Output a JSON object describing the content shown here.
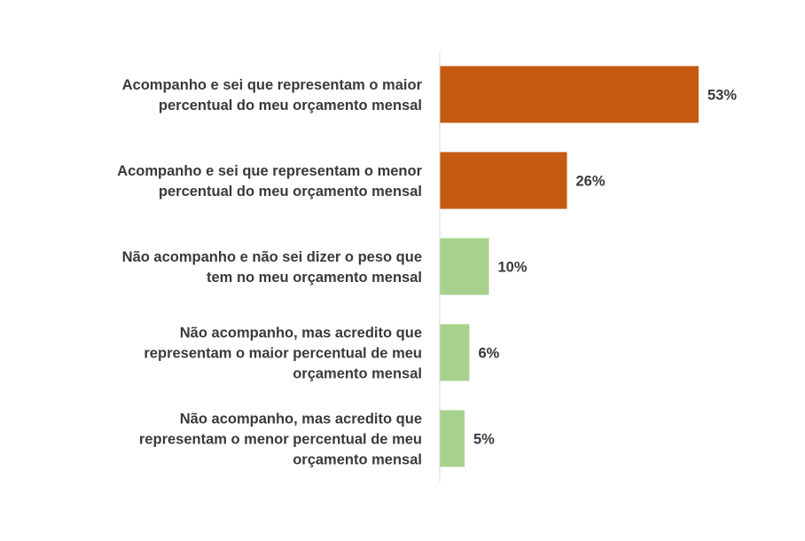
{
  "chart_data": {
    "type": "bar",
    "orientation": "horizontal",
    "categories": [
      [
        "Acompanho e sei que representam o maior",
        "percentual do meu orçamento mensal"
      ],
      [
        "Acompanho e sei que representam o menor",
        "percentual do meu orçamento mensal"
      ],
      [
        "Não acompanho e não sei dizer o peso que",
        "tem no meu orçamento mensal"
      ],
      [
        "Não acompanho, mas acredito que",
        "representam o maior percentual de meu",
        "orçamento mensal"
      ],
      [
        "Não acompanho, mas acredito que",
        "representam o menor percentual de meu",
        "orçamento mensal"
      ]
    ],
    "values": [
      53,
      26,
      10,
      6,
      5
    ],
    "value_labels": [
      "53%",
      "26%",
      "10%",
      "6%",
      "5%"
    ],
    "colors": [
      "#c55a11",
      "#c55a11",
      "#a9d18e",
      "#a9d18e",
      "#a9d18e"
    ],
    "xlim": [
      0,
      60
    ],
    "grid": false,
    "title": "",
    "xlabel": "",
    "ylabel": ""
  }
}
